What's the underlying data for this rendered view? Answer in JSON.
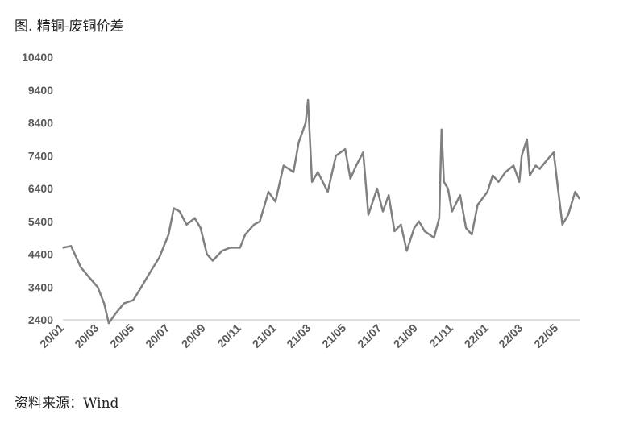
{
  "header": {
    "title": "图. 精铜-废铜价差"
  },
  "footer": {
    "source": "资料来源：Wind"
  },
  "chart_data": {
    "type": "line",
    "title": "图. 精铜-废铜价差",
    "xlabel": "",
    "ylabel": "",
    "ylim": [
      2400,
      10400
    ],
    "yticks": [
      "2400",
      "3400",
      "4400",
      "5400",
      "6400",
      "7400",
      "8400",
      "9400",
      "10400"
    ],
    "xticks": [
      "20/01",
      "20/03",
      "20/05",
      "20/07",
      "20/09",
      "20/11",
      "21/01",
      "21/03",
      "21/05",
      "21/07",
      "21/09",
      "21/11",
      "22/01",
      "22/03",
      "22/05"
    ],
    "grid": false,
    "legend": "none",
    "line_color": "#808080",
    "series": [
      {
        "x": [
          "2020-01-02",
          "2020-01-15",
          "2020-02-01",
          "2020-02-15",
          "2020-03-01",
          "2020-03-12",
          "2020-03-20",
          "2020-04-01",
          "2020-04-15",
          "2020-05-01",
          "2020-05-15",
          "2020-06-01",
          "2020-06-15",
          "2020-07-01",
          "2020-07-10",
          "2020-07-20",
          "2020-08-01",
          "2020-08-15",
          "2020-08-25",
          "2020-09-05",
          "2020-09-15",
          "2020-10-01",
          "2020-10-15",
          "2020-11-01",
          "2020-11-10",
          "2020-11-25",
          "2020-12-05",
          "2020-12-20",
          "2021-01-01",
          "2021-01-15",
          "2021-02-01",
          "2021-02-10",
          "2021-02-22",
          "2021-02-26",
          "2021-03-05",
          "2021-03-15",
          "2021-04-01",
          "2021-04-15",
          "2021-05-01",
          "2021-05-10",
          "2021-05-20",
          "2021-06-01",
          "2021-06-10",
          "2021-06-25",
          "2021-07-05",
          "2021-07-15",
          "2021-07-25",
          "2021-08-05",
          "2021-08-15",
          "2021-08-28",
          "2021-09-05",
          "2021-09-15",
          "2021-10-01",
          "2021-10-10",
          "2021-10-14",
          "2021-10-18",
          "2021-10-25",
          "2021-11-01",
          "2021-11-15",
          "2021-11-25",
          "2021-12-05",
          "2021-12-15",
          "2022-01-01",
          "2022-01-10",
          "2022-01-20",
          "2022-02-01",
          "2022-02-15",
          "2022-02-25",
          "2022-03-01",
          "2022-03-10",
          "2022-03-15",
          "2022-03-25",
          "2022-04-01",
          "2022-04-15",
          "2022-04-25",
          "2022-05-01",
          "2022-05-10",
          "2022-05-20",
          "2022-06-01",
          "2022-06-08"
        ],
        "values": [
          4600,
          4650,
          4000,
          3700,
          3400,
          2900,
          2300,
          2600,
          2900,
          3000,
          3400,
          3900,
          4300,
          5000,
          5800,
          5700,
          5300,
          5500,
          5200,
          4400,
          4200,
          4500,
          4600,
          4600,
          5000,
          5300,
          5400,
          6300,
          6000,
          7100,
          6900,
          7800,
          8400,
          9100,
          6600,
          6900,
          6300,
          7400,
          7600,
          6700,
          7100,
          7500,
          5600,
          6400,
          5700,
          6200,
          5100,
          5300,
          4500,
          5200,
          5400,
          5100,
          4900,
          5500,
          8200,
          6600,
          6400,
          5700,
          6200,
          5200,
          5000,
          5900,
          6300,
          6800,
          6600,
          6900,
          7100,
          6600,
          7400,
          7900,
          6800,
          7100,
          7000,
          7300,
          7500,
          6600,
          5300,
          5600,
          6300,
          6100
        ]
      }
    ]
  }
}
